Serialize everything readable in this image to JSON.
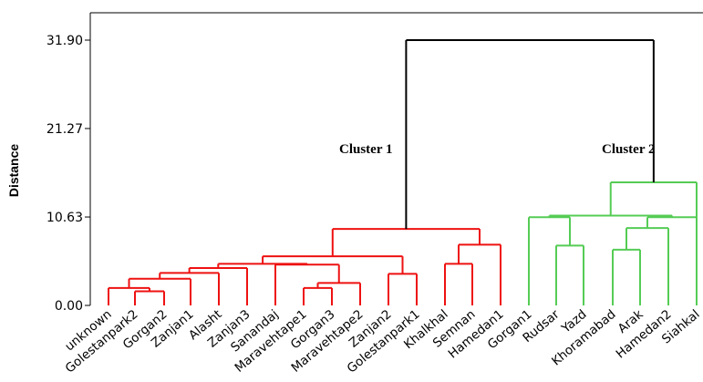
{
  "chart_data": {
    "type": "dendrogram",
    "ylabel": "Distance",
    "y_ticks": [
      "0.00",
      "10.63",
      "21.27",
      "31.90"
    ],
    "ylim": [
      0,
      31.9
    ],
    "colors": {
      "cluster1": "#ee1111",
      "cluster2": "#55cc55",
      "root": "#000000",
      "axis": "#000000"
    },
    "leaves": [
      "unknown",
      "Golestanpark2",
      "Gorgan2",
      "Zanjan1",
      "Alasht",
      "Zanjan3",
      "Sanandaj",
      "Maravehtape1",
      "Gorgan3",
      "Maravehtape2",
      "Zanjan2",
      "Golestanpark1",
      "Khalkhal",
      "Semnan",
      "Hamedan1",
      "Gorgan1",
      "Rudsar",
      "Yazd",
      "Khoramabad",
      "Arak",
      "Hamedan2",
      "Siahkal"
    ],
    "clusters": [
      {
        "name": "Cluster 1",
        "color": "#ee1111"
      },
      {
        "name": "Cluster 2",
        "color": "#55cc55"
      }
    ],
    "merges": [
      {
        "id": "n1",
        "left": "L1",
        "right": "L2",
        "height": 1.7,
        "cluster": 1
      },
      {
        "id": "n2",
        "left": "L0",
        "right": "n1",
        "height": 2.1,
        "cluster": 1
      },
      {
        "id": "n3",
        "left": "n2",
        "right": "L3",
        "height": 3.2,
        "cluster": 1
      },
      {
        "id": "n4",
        "left": "n3",
        "right": "L4",
        "height": 3.9,
        "cluster": 1
      },
      {
        "id": "n5",
        "left": "n4",
        "right": "L5",
        "height": 4.5,
        "cluster": 1
      },
      {
        "id": "n6",
        "left": "L7",
        "right": "L8",
        "height": 2.1,
        "cluster": 1
      },
      {
        "id": "n7",
        "left": "n6",
        "right": "L9",
        "height": 2.7,
        "cluster": 1
      },
      {
        "id": "n8",
        "left": "L6",
        "right": "n7",
        "height": 4.9,
        "cluster": 1
      },
      {
        "id": "n9",
        "left": "n5",
        "right": "n8",
        "height": 5.0,
        "cluster": 1
      },
      {
        "id": "n10",
        "left": "L10",
        "right": "L11",
        "height": 3.8,
        "cluster": 1
      },
      {
        "id": "n11",
        "left": "n9",
        "right": "n10",
        "height": 5.9,
        "cluster": 1
      },
      {
        "id": "n12",
        "left": "L12",
        "right": "L13",
        "height": 5.0,
        "cluster": 1
      },
      {
        "id": "n13",
        "left": "n12",
        "right": "L14",
        "height": 7.3,
        "cluster": 1
      },
      {
        "id": "n14",
        "left": "n11",
        "right": "n13",
        "height": 9.2,
        "cluster": 1
      },
      {
        "id": "n15",
        "left": "L16",
        "right": "L17",
        "height": 7.2,
        "cluster": 2
      },
      {
        "id": "n16",
        "left": "L15",
        "right": "n15",
        "height": 10.6,
        "cluster": 2
      },
      {
        "id": "n17",
        "left": "L18",
        "right": "L19",
        "height": 6.7,
        "cluster": 2
      },
      {
        "id": "n18",
        "left": "n17",
        "right": "L20",
        "height": 9.3,
        "cluster": 2
      },
      {
        "id": "n19",
        "left": "n18",
        "right": "L21",
        "height": 10.6,
        "cluster": 2
      },
      {
        "id": "n20",
        "left": "n16",
        "right": "n19",
        "height": 10.8,
        "cluster": 2
      },
      {
        "id": "n21",
        "left": "n20",
        "right": "L21",
        "height": 14.8,
        "cluster": 2,
        "note_shape": "outer"
      },
      {
        "id": "n22",
        "left": "n14",
        "right": "n21",
        "height": 31.9,
        "cluster": 0
      }
    ]
  }
}
